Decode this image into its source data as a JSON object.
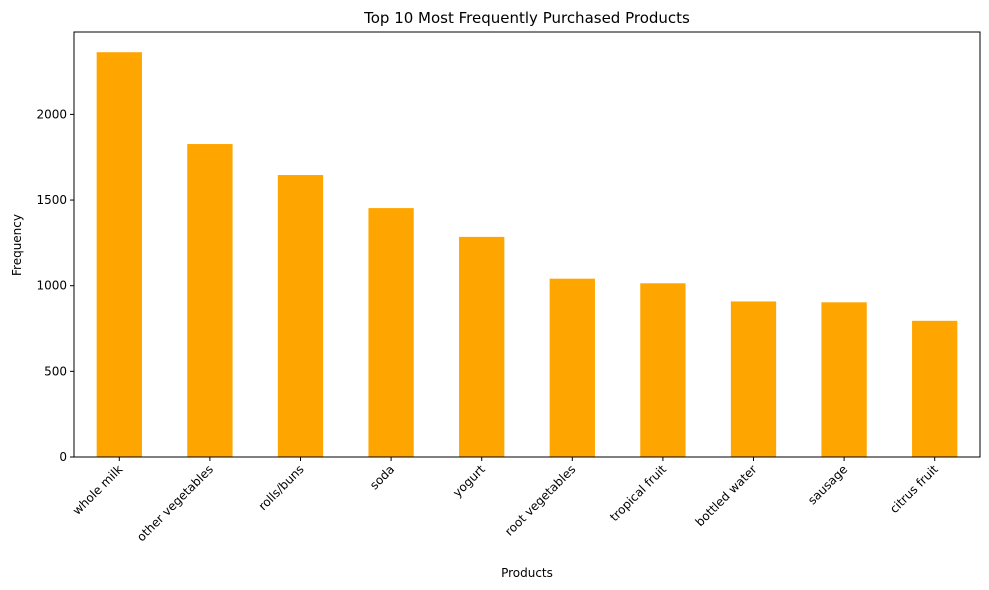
{
  "chart_data": {
    "type": "bar",
    "title": "Top 10 Most Frequently Purchased Products",
    "xlabel": "Products",
    "ylabel": "Frequency",
    "categories": [
      "whole milk",
      "other vegetables",
      "rolls/buns",
      "soda",
      "yogurt",
      "root vegetables",
      "tropical fruit",
      "bottled water",
      "sausage",
      "citrus fruit"
    ],
    "values": [
      2363,
      1827,
      1646,
      1453,
      1285,
      1041,
      1014,
      908,
      903,
      795
    ],
    "ylim": [
      0,
      2481
    ],
    "yticks": [
      0,
      500,
      1000,
      1500,
      2000
    ],
    "bar_color": "#ffa500",
    "grid": false,
    "legend": "none"
  }
}
